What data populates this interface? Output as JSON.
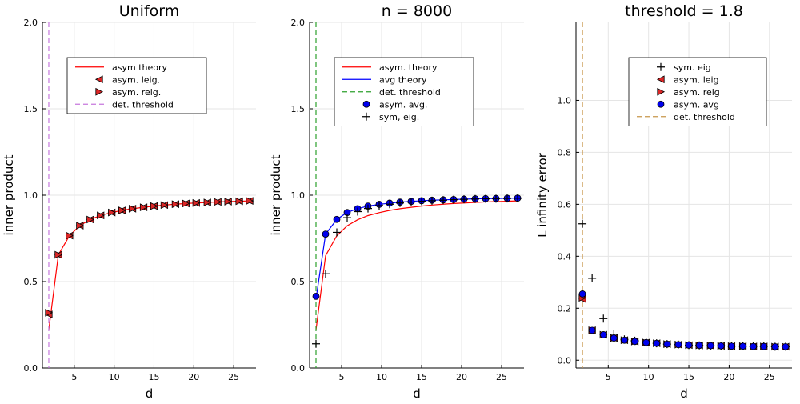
{
  "chart_data": [
    {
      "type": "line+scatter",
      "title": "Uniform",
      "xlabel": "d",
      "ylabel": "inner product",
      "xlim": [
        1.0,
        27.8
      ],
      "ylim": [
        0,
        2.0
      ],
      "xticks": [
        5,
        10,
        15,
        20,
        25
      ],
      "yticks": [
        0.0,
        0.5,
        1.0,
        1.5,
        2.0
      ],
      "ytick_labels": [
        "0.0",
        "0.5",
        "1.0",
        "1.5",
        "2.0"
      ],
      "grid": true,
      "legend_position": "upper-center",
      "x": [
        1.8,
        3.0,
        4.4,
        5.7,
        7.0,
        8.3,
        9.7,
        11.0,
        12.3,
        13.7,
        15.0,
        16.3,
        17.7,
        19.0,
        20.3,
        21.7,
        23.0,
        24.3,
        25.7,
        27.0
      ],
      "series": [
        {
          "name": "asym theory",
          "kind": "line",
          "color": "#ff0000",
          "values": [
            0.22,
            0.655,
            0.766,
            0.824,
            0.859,
            0.883,
            0.9,
            0.912,
            0.922,
            0.93,
            0.937,
            0.943,
            0.948,
            0.952,
            0.955,
            0.958,
            0.961,
            0.963,
            0.965,
            0.967
          ]
        },
        {
          "name": "asym. leig.",
          "kind": "marker",
          "marker": "triangle-left",
          "color": "#dc2626",
          "values": [
            0.31,
            0.655,
            0.766,
            0.824,
            0.859,
            0.883,
            0.9,
            0.912,
            0.922,
            0.93,
            0.937,
            0.943,
            0.948,
            0.952,
            0.955,
            0.958,
            0.961,
            0.963,
            0.965,
            0.967
          ]
        },
        {
          "name": "asym. reig.",
          "kind": "marker",
          "marker": "triangle-right",
          "color": "#dc2626",
          "values": [
            0.32,
            0.655,
            0.766,
            0.824,
            0.859,
            0.883,
            0.9,
            0.912,
            0.922,
            0.93,
            0.937,
            0.943,
            0.948,
            0.952,
            0.955,
            0.958,
            0.961,
            0.963,
            0.965,
            0.967
          ]
        },
        {
          "name": "det. threshold",
          "kind": "vline",
          "dash": "dashed",
          "color": "#c678dd",
          "x_value": 1.8
        }
      ]
    },
    {
      "type": "line+scatter",
      "title": "n = 8000",
      "xlabel": "d",
      "ylabel": "inner product",
      "xlim": [
        1.0,
        27.8
      ],
      "ylim": [
        0,
        2.0
      ],
      "xticks": [
        5,
        10,
        15,
        20,
        25
      ],
      "yticks": [
        0.0,
        0.5,
        1.0,
        1.5,
        2.0
      ],
      "ytick_labels": [
        "0.0",
        "0.5",
        "1.0",
        "1.5",
        "2.0"
      ],
      "grid": true,
      "legend_position": "upper-center",
      "x": [
        1.8,
        3.0,
        4.4,
        5.7,
        7.0,
        8.3,
        9.7,
        11.0,
        12.3,
        13.7,
        15.0,
        16.3,
        17.7,
        19.0,
        20.3,
        21.7,
        23.0,
        24.3,
        25.7,
        27.0
      ],
      "series": [
        {
          "name": "asym. theory",
          "kind": "line",
          "color": "#ff0000",
          "values": [
            0.22,
            0.65,
            0.765,
            0.823,
            0.858,
            0.882,
            0.899,
            0.912,
            0.922,
            0.93,
            0.937,
            0.943,
            0.948,
            0.952,
            0.955,
            0.958,
            0.961,
            0.963,
            0.965,
            0.967
          ]
        },
        {
          "name": "avg theory",
          "kind": "line",
          "color": "#0000ff",
          "values": [
            0.4,
            0.775,
            0.86,
            0.9,
            0.922,
            0.937,
            0.947,
            0.954,
            0.96,
            0.964,
            0.968,
            0.971,
            0.973,
            0.975,
            0.977,
            0.979,
            0.98,
            0.981,
            0.982,
            0.983
          ]
        },
        {
          "name": "det. threshold",
          "kind": "vline",
          "dash": "dashed",
          "color": "#2ca02c",
          "x_value": 1.8
        },
        {
          "name": "asym. avg.",
          "kind": "marker",
          "marker": "circle",
          "color": "#0000ee",
          "values": [
            0.415,
            0.775,
            0.86,
            0.9,
            0.922,
            0.937,
            0.947,
            0.954,
            0.96,
            0.964,
            0.968,
            0.971,
            0.973,
            0.975,
            0.977,
            0.979,
            0.98,
            0.981,
            0.982,
            0.983
          ]
        },
        {
          "name": "sym, eig.",
          "kind": "marker",
          "marker": "plus",
          "color": "#000000",
          "values": [
            0.14,
            0.545,
            0.785,
            0.87,
            0.905,
            0.923,
            0.94,
            0.948,
            0.955,
            0.96,
            0.965,
            0.968,
            0.971,
            0.974,
            0.976,
            0.978,
            0.979,
            0.98,
            0.981,
            0.982
          ]
        }
      ]
    },
    {
      "type": "scatter",
      "title": "threshold = 1.8",
      "xlabel": "d",
      "ylabel": "L infinity error",
      "xlim": [
        1.0,
        27.8
      ],
      "ylim": [
        -0.03,
        1.3
      ],
      "xticks": [
        5,
        10,
        15,
        20,
        25
      ],
      "yticks": [
        0.0,
        0.2,
        0.4,
        0.6,
        0.8,
        1.0
      ],
      "ytick_labels": [
        "0.0",
        "0.2",
        "0.4",
        "0.6",
        "0.8",
        "1.0"
      ],
      "grid": true,
      "legend_position": "upper-center",
      "x": [
        1.8,
        3.0,
        4.4,
        5.7,
        7.0,
        8.3,
        9.7,
        11.0,
        12.3,
        13.7,
        15.0,
        16.3,
        17.7,
        19.0,
        20.3,
        21.7,
        23.0,
        24.3,
        25.7,
        27.0
      ],
      "series": [
        {
          "name": "sym. eig",
          "kind": "marker",
          "marker": "plus",
          "color": "#000000",
          "values": [
            0.525,
            0.315,
            0.16,
            0.1,
            0.08,
            0.075,
            0.068,
            0.065,
            0.062,
            0.06,
            0.058,
            0.057,
            0.056,
            0.055,
            0.054,
            0.054,
            0.053,
            0.053,
            0.052,
            0.052
          ]
        },
        {
          "name": "asym. leig",
          "kind": "marker",
          "marker": "triangle-left",
          "color": "#dc2626",
          "values": [
            0.235,
            0.115,
            0.098,
            0.085,
            0.077,
            0.072,
            0.068,
            0.065,
            0.062,
            0.06,
            0.058,
            0.057,
            0.056,
            0.055,
            0.054,
            0.054,
            0.053,
            0.053,
            0.052,
            0.052
          ]
        },
        {
          "name": "asym. reig",
          "kind": "marker",
          "marker": "triangle-right",
          "color": "#dc2626",
          "values": [
            0.24,
            0.115,
            0.098,
            0.085,
            0.077,
            0.072,
            0.068,
            0.065,
            0.062,
            0.06,
            0.058,
            0.057,
            0.056,
            0.055,
            0.054,
            0.054,
            0.053,
            0.053,
            0.052,
            0.052
          ]
        },
        {
          "name": "asym. avg",
          "kind": "marker",
          "marker": "circle",
          "color": "#0000ee",
          "values": [
            0.255,
            0.115,
            0.098,
            0.085,
            0.077,
            0.072,
            0.068,
            0.065,
            0.062,
            0.06,
            0.058,
            0.057,
            0.056,
            0.055,
            0.054,
            0.054,
            0.053,
            0.053,
            0.052,
            0.052
          ]
        },
        {
          "name": "det. threshold",
          "kind": "vline",
          "dash": "dashed",
          "color": "#c8964b",
          "x_value": 1.8
        }
      ]
    }
  ]
}
